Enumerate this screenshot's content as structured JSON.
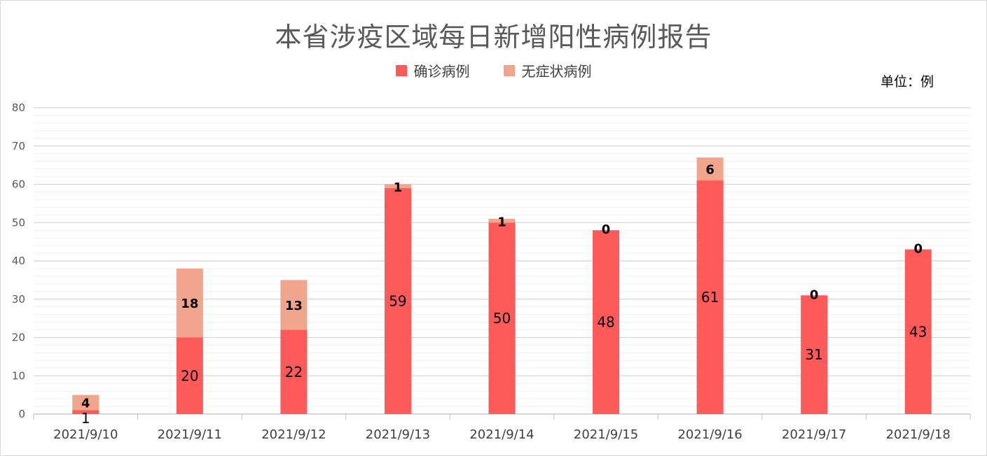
{
  "chart_data": {
    "type": "bar",
    "stacked": true,
    "title": "本省涉疫区域每日新增阳性病例报告",
    "unit_label": "单位：例",
    "categories": [
      "2021/9/10",
      "2021/9/11",
      "2021/9/12",
      "2021/9/13",
      "2021/9/14",
      "2021/9/15",
      "2021/9/16",
      "2021/9/17",
      "2021/9/18"
    ],
    "series": [
      {
        "name": "确诊病例",
        "color": "#ff5a5a",
        "values": [
          1,
          20,
          22,
          59,
          50,
          48,
          61,
          31,
          43
        ]
      },
      {
        "name": "无症状病例",
        "color": "#f1a58c",
        "values": [
          4,
          18,
          13,
          1,
          1,
          0,
          6,
          0,
          0
        ]
      }
    ],
    "ylim": [
      0,
      80
    ],
    "yticks": [
      0,
      10,
      20,
      30,
      40,
      50,
      60,
      70,
      80
    ],
    "grid": true,
    "legend": "top-center"
  }
}
